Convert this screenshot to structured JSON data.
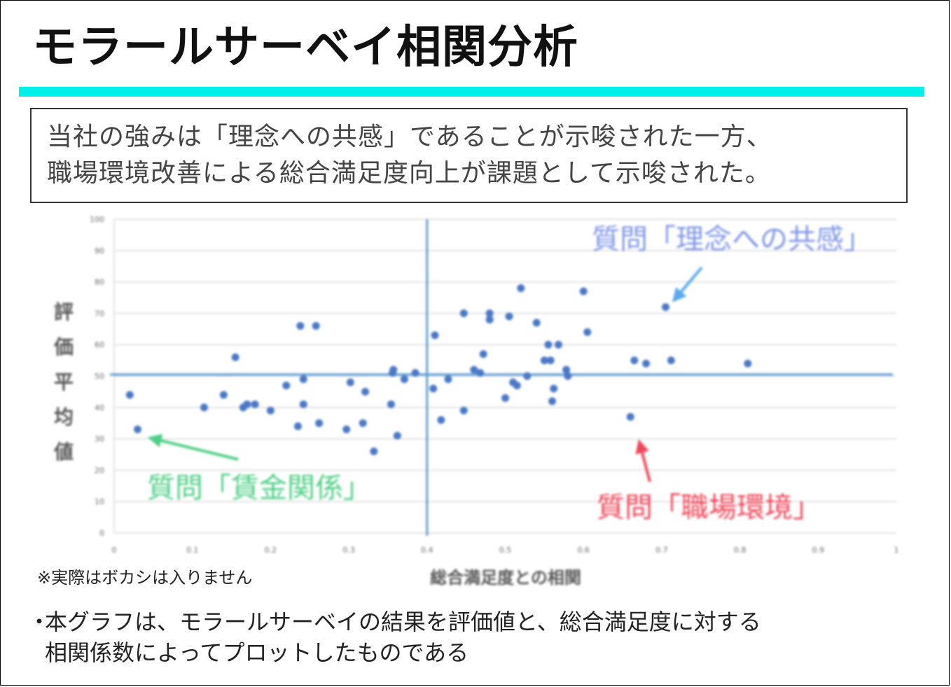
{
  "title": "モラールサーベイ相関分析",
  "colors": {
    "accent": "#00f0ea",
    "grid": "#d9d9d9",
    "axis_line": "#5b9bd5",
    "points": "#4a78c6",
    "green": "#4fcf86",
    "red": "#f0485a",
    "blue_label": "#7f97e6",
    "blue_arrow": "#5aa9ee"
  },
  "summary": {
    "line1": "当社の強みは「理念への共感」であることが示唆された一方、",
    "line2": "職場環境改善による総合満足度向上が課題として示唆された。"
  },
  "note": "※実際はボカシは入りません",
  "bullets": {
    "mark": "・",
    "line1": "本グラフは、モラールサーベイの結果を評価値と、総合満足度に対する",
    "line2": "相関係数によってプロットしたものである"
  },
  "chart_data": {
    "type": "scatter",
    "xlabel": "総合満足度との相関",
    "ylabel": "評価平均値",
    "xlim": [
      0,
      1
    ],
    "ylim": [
      0,
      100
    ],
    "x_ticks": [
      "0",
      "0.1",
      "0.2",
      "0.3",
      "0.4",
      "0.5",
      "0.6",
      "0.7",
      "0.8",
      "0.9",
      "1"
    ],
    "y_ticks": [
      "0",
      "10",
      "20",
      "30",
      "40",
      "50",
      "60",
      "70",
      "80",
      "90",
      "100"
    ],
    "grid": true,
    "reference_lines": {
      "x": 0.4,
      "y": 50.5
    },
    "annotations": [
      {
        "text": "質問「理念への共感」",
        "color_key": "blue_label",
        "point": [
          0.705,
          71.5
        ]
      },
      {
        "text": "質問「賃金関係」",
        "color_key": "green",
        "point": [
          0.03,
          32.5
        ]
      },
      {
        "text": "質問「職場環境」",
        "color_key": "red",
        "point": [
          0.67,
          36.5
        ]
      }
    ],
    "points": [
      [
        0.02,
        44
      ],
      [
        0.03,
        33
      ],
      [
        0.115,
        40
      ],
      [
        0.14,
        44
      ],
      [
        0.155,
        56
      ],
      [
        0.165,
        40
      ],
      [
        0.17,
        41
      ],
      [
        0.18,
        41
      ],
      [
        0.2,
        39
      ],
      [
        0.22,
        47
      ],
      [
        0.235,
        34
      ],
      [
        0.238,
        66
      ],
      [
        0.242,
        49
      ],
      [
        0.242,
        41
      ],
      [
        0.258,
        66
      ],
      [
        0.262,
        35
      ],
      [
        0.297,
        33
      ],
      [
        0.302,
        48
      ],
      [
        0.318,
        35
      ],
      [
        0.321,
        45
      ],
      [
        0.332,
        26
      ],
      [
        0.354,
        41
      ],
      [
        0.356,
        51
      ],
      [
        0.357,
        52
      ],
      [
        0.362,
        31
      ],
      [
        0.371,
        49
      ],
      [
        0.385,
        51
      ],
      [
        0.408,
        46
      ],
      [
        0.41,
        63
      ],
      [
        0.418,
        36
      ],
      [
        0.427,
        49
      ],
      [
        0.447,
        70
      ],
      [
        0.447,
        39
      ],
      [
        0.46,
        52
      ],
      [
        0.468,
        51
      ],
      [
        0.472,
        57
      ],
      [
        0.48,
        70
      ],
      [
        0.48,
        68
      ],
      [
        0.5,
        43
      ],
      [
        0.505,
        69
      ],
      [
        0.51,
        48
      ],
      [
        0.515,
        47
      ],
      [
        0.52,
        78
      ],
      [
        0.528,
        50
      ],
      [
        0.54,
        67
      ],
      [
        0.55,
        55
      ],
      [
        0.555,
        60
      ],
      [
        0.558,
        55
      ],
      [
        0.56,
        42
      ],
      [
        0.562,
        46
      ],
      [
        0.568,
        60
      ],
      [
        0.578,
        52
      ],
      [
        0.58,
        50
      ],
      [
        0.6,
        77
      ],
      [
        0.605,
        64
      ],
      [
        0.66,
        37
      ],
      [
        0.665,
        55
      ],
      [
        0.68,
        54
      ],
      [
        0.705,
        72
      ],
      [
        0.712,
        55
      ],
      [
        0.81,
        54
      ]
    ]
  }
}
